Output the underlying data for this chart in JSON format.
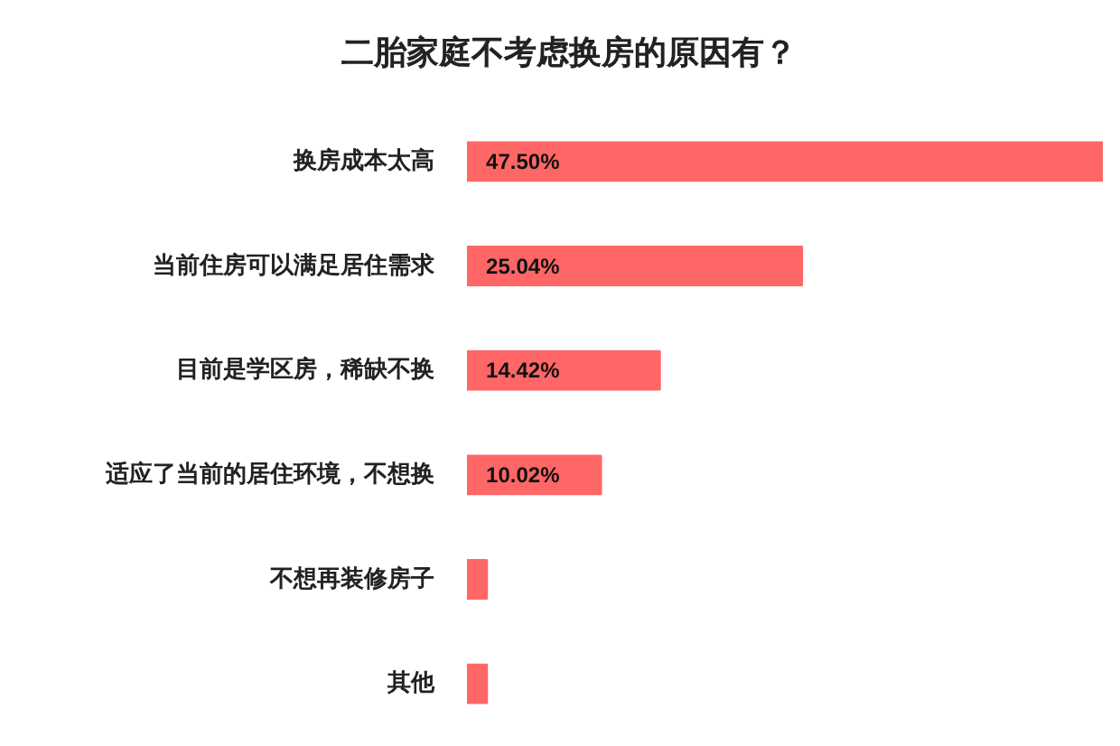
{
  "chart_data": {
    "type": "bar",
    "orientation": "horizontal",
    "title": "二胎家庭不考虑换房的原因有？",
    "categories": [
      "换房成本太高",
      "当前住房可以满足居住需求",
      "目前是学区房，稀缺不换",
      "适应了当前的居住环境，不想换",
      "不想再装修房子",
      "其他"
    ],
    "values": [
      47.5,
      25.04,
      14.42,
      10.02,
      1.5,
      1.5
    ],
    "value_labels": [
      "47.50%",
      "25.04%",
      "14.42%",
      "10.02%",
      null,
      null
    ],
    "color": "#ff6666",
    "grid": false
  }
}
